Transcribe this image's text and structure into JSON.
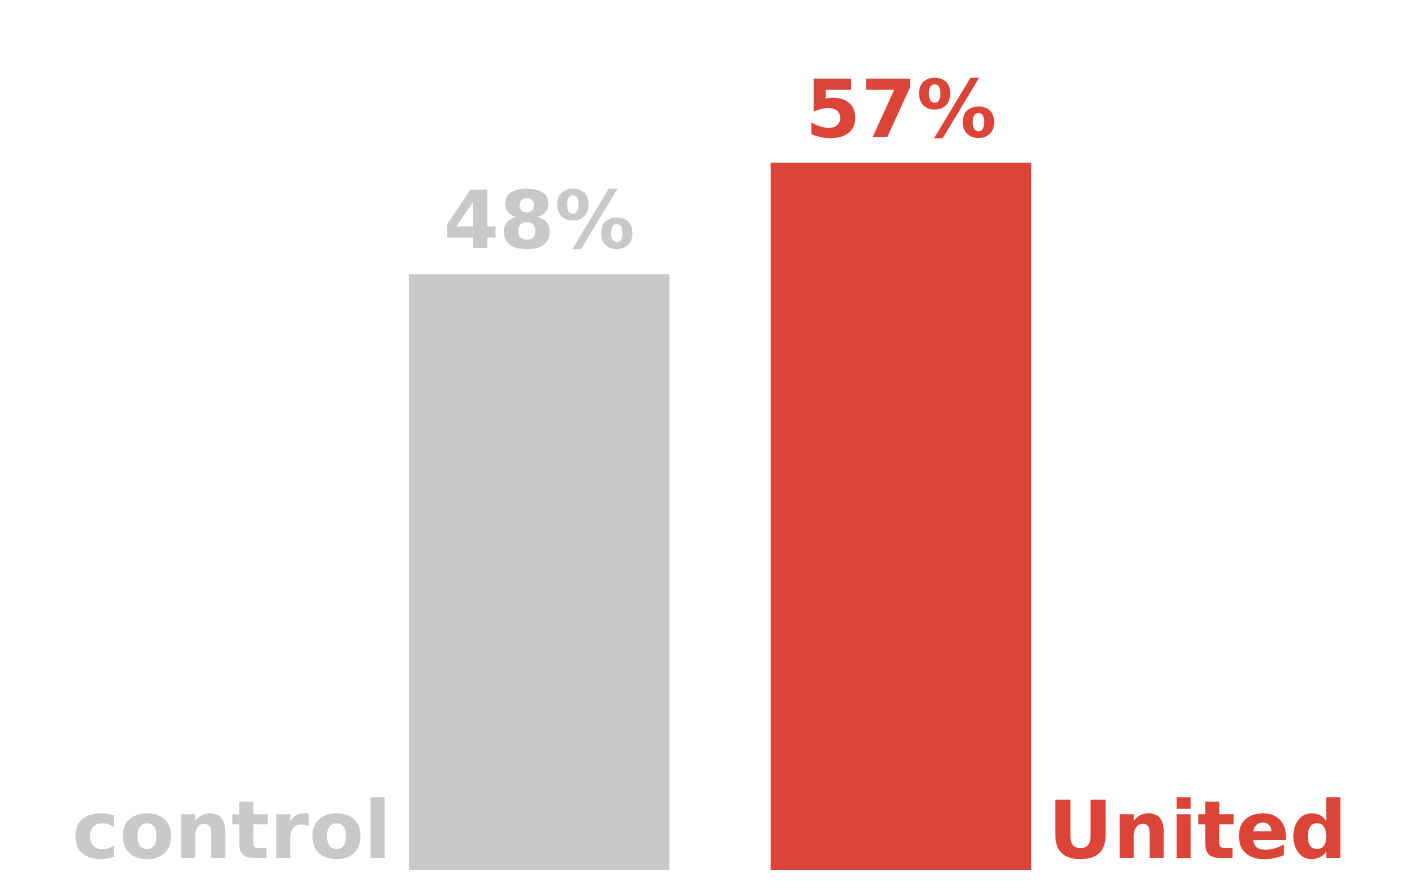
{
  "chart_data": {
    "type": "bar",
    "categories": [
      "control",
      "United"
    ],
    "values": [
      48,
      57
    ],
    "colors": [
      "#c8c9cb",
      "#dc4438"
    ],
    "value_labels": [
      "48%",
      "57%"
    ]
  }
}
